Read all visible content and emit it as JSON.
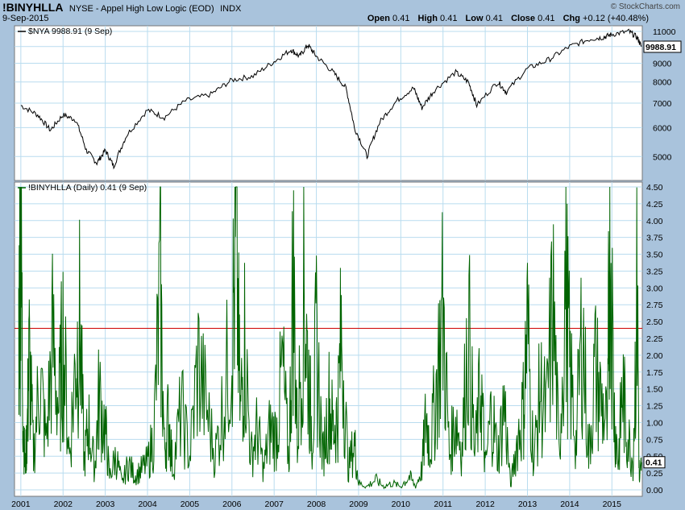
{
  "header": {
    "symbol": "!BINYHLLA",
    "description": "NYSE - Appel High Low Logic (EOD)",
    "exchange": "INDX",
    "date": "9-Sep-2015",
    "watermark": "© StockCharts.com",
    "open_label": "Open",
    "open": "0.41",
    "high_label": "High",
    "high": "0.41",
    "low_label": "Low",
    "low": "0.41",
    "close_label": "Close",
    "close": "0.41",
    "chg_label": "Chg",
    "chg": "+0.12 (+40.48%)"
  },
  "colors": {
    "background": "#a9c3dc",
    "panel": "#ffffff",
    "grid": "#b9dcef",
    "price_line": "#000000",
    "indicator_line": "#006400",
    "reference_line": "#cc0000"
  },
  "chart_data": [
    {
      "type": "line",
      "legend": "$NYA 9988.91 (9 Sep)",
      "last_value_label": "9988.91",
      "scale": "log",
      "ylim": [
        4300,
        11400
      ],
      "yticks": [
        5000,
        6000,
        7000,
        8000,
        9000,
        10000,
        11000
      ],
      "ytick_labels": [
        "5000",
        "6000",
        "7000",
        "8000",
        "9000",
        "10000",
        "11000"
      ],
      "grid": true,
      "series": [
        {
          "x": [
            2001.0,
            2001.4,
            2001.7,
            2002.0,
            2002.3,
            2002.55,
            2002.8,
            2003.0,
            2003.2,
            2003.5,
            2004.0,
            2004.4,
            2004.9,
            2005.5,
            2006.0,
            2006.5,
            2007.0,
            2007.4,
            2007.6,
            2007.8,
            2008.0,
            2008.4,
            2008.7,
            2008.9,
            2009.2,
            2009.5,
            2009.9,
            2010.3,
            2010.5,
            2010.8,
            2011.3,
            2011.6,
            2011.8,
            2012.3,
            2012.5,
            2013.0,
            2013.5,
            2014.0,
            2014.5,
            2014.8,
            2015.0,
            2015.4,
            2015.6,
            2015.7
          ],
          "y": [
            6900,
            6500,
            5900,
            6500,
            6300,
            5200,
            4800,
            5200,
            4700,
            5700,
            6700,
            6400,
            7100,
            7400,
            8100,
            8300,
            9100,
            9800,
            9400,
            10100,
            9400,
            8500,
            7700,
            6000,
            5000,
            6200,
            7100,
            7700,
            6800,
            7600,
            8500,
            8000,
            6900,
            8000,
            7500,
            8700,
            9200,
            10000,
            10500,
            10600,
            10800,
            11000,
            10600,
            9989
          ]
        }
      ]
    },
    {
      "type": "line",
      "legend": "!BINYHLLA (Daily) 0.41 (9 Sep)",
      "last_value_label": "0.41",
      "ylim": [
        0,
        4.5
      ],
      "yticks": [
        0,
        0.25,
        0.5,
        0.75,
        1,
        1.25,
        1.5,
        1.75,
        2,
        2.25,
        2.5,
        2.75,
        3,
        3.25,
        3.5,
        3.75,
        4,
        4.25,
        4.5
      ],
      "ytick_labels": [
        "0.00",
        "0.25",
        "0.50",
        "0.75",
        "1.00",
        "1.25",
        "1.50",
        "1.75",
        "2.00",
        "2.25",
        "2.50",
        "2.75",
        "3.00",
        "3.25",
        "3.50",
        "3.75",
        "4.00",
        "4.25",
        "4.50"
      ],
      "reference_line": 2.4,
      "grid": true,
      "series": [
        {
          "x": [
            2000.95,
            2001.0,
            2001.05,
            2001.1,
            2001.15,
            2001.2,
            2001.3,
            2001.45,
            2001.6,
            2001.75,
            2001.9,
            2002.0,
            2002.15,
            2002.3,
            2002.4,
            2002.5,
            2002.6,
            2002.75,
            2002.85,
            2003.0,
            2003.1,
            2003.25,
            2003.4,
            2003.55,
            2003.7,
            2003.85,
            2004.0,
            2004.15,
            2004.3,
            2004.4,
            2004.5,
            2004.6,
            2004.8,
            2005.0,
            2005.2,
            2005.4,
            2005.6,
            2005.8,
            2006.0,
            2006.1,
            2006.2,
            2006.3,
            2006.45,
            2006.6,
            2006.75,
            2006.9,
            2007.05,
            2007.2,
            2007.35,
            2007.45,
            2007.55,
            2007.7,
            2007.8,
            2007.9,
            2008.0,
            2008.15,
            2008.3,
            2008.4,
            2008.5,
            2008.6,
            2008.75,
            2008.9,
            2009.0,
            2009.2,
            2009.4,
            2009.6,
            2009.8,
            2010.0,
            2010.2,
            2010.35,
            2010.5,
            2010.6,
            2010.7,
            2010.85,
            2011.0,
            2011.15,
            2011.3,
            2011.45,
            2011.6,
            2011.75,
            2011.9,
            2012.0,
            2012.15,
            2012.3,
            2012.45,
            2012.6,
            2012.75,
            2012.9,
            2013.0,
            2013.15,
            2013.3,
            2013.45,
            2013.6,
            2013.75,
            2013.9,
            2014.0,
            2014.15,
            2014.3,
            2014.45,
            2014.6,
            2014.75,
            2014.9,
            2014.95,
            2015.05,
            2015.15,
            2015.25,
            2015.35,
            2015.5,
            2015.6,
            2015.65,
            2015.7
          ],
          "y": [
            2.4,
            4.1,
            1.2,
            0.3,
            0.9,
            2.0,
            0.5,
            1.7,
            0.7,
            2.2,
            1.2,
            2.3,
            0.5,
            1.9,
            2.5,
            0.4,
            1.0,
            0.3,
            1.4,
            0.9,
            0.2,
            0.5,
            0.1,
            0.4,
            0.2,
            0.3,
            0.4,
            0.8,
            3.0,
            0.6,
            1.1,
            0.3,
            1.2,
            0.5,
            1.9,
            1.2,
            0.5,
            1.3,
            2.3,
            3.6,
            1.1,
            2.2,
            0.5,
            0.9,
            0.3,
            0.9,
            0.8,
            1.8,
            0.4,
            3.3,
            0.7,
            3.1,
            1.8,
            0.8,
            2.2,
            0.5,
            1.3,
            0.9,
            1.1,
            2.4,
            0.3,
            0.7,
            0.1,
            0.05,
            0.15,
            0.05,
            0.1,
            0.05,
            0.2,
            0.05,
            0.3,
            1.1,
            0.6,
            1.6,
            2.7,
            0.5,
            1.1,
            0.6,
            2.5,
            0.5,
            1.6,
            0.3,
            1.2,
            0.5,
            1.3,
            0.05,
            0.7,
            1.2,
            2.4,
            0.4,
            1.5,
            1.1,
            2.8,
            0.5,
            3.2,
            1.8,
            0.7,
            2.5,
            0.5,
            1.8,
            1.3,
            0.9,
            4.5,
            1.2,
            0.4,
            1.5,
            0.9,
            0.4,
            3.0,
            0.1,
            0.41
          ]
        }
      ]
    }
  ],
  "x_axis": {
    "years": [
      "2001",
      "2002",
      "2003",
      "2004",
      "2005",
      "2006",
      "2007",
      "2008",
      "2009",
      "2010",
      "2011",
      "2012",
      "2013",
      "2014",
      "2015"
    ]
  }
}
